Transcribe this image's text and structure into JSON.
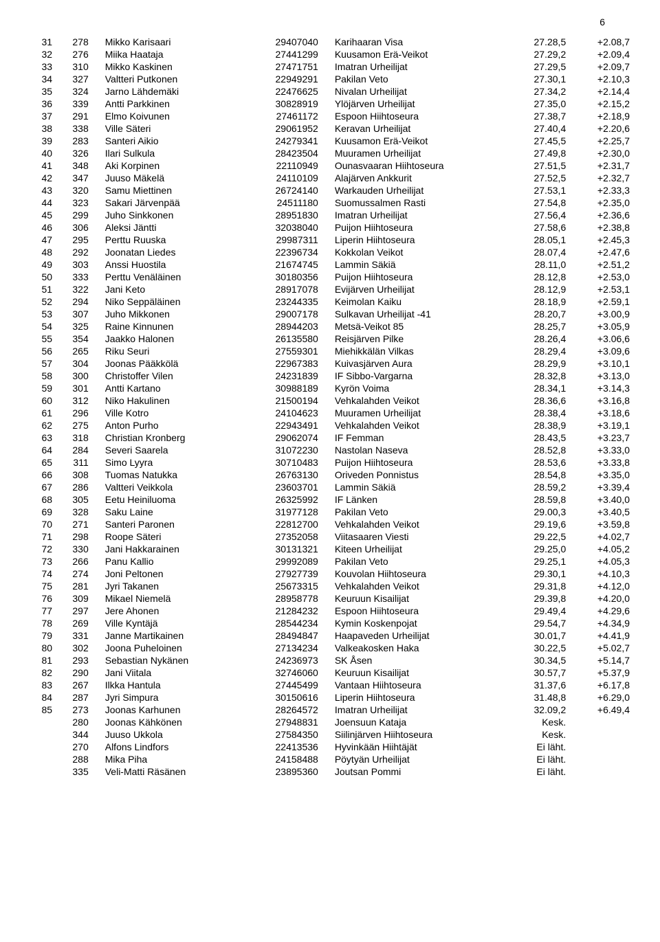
{
  "page_number": "6",
  "styling": {
    "font_family": "Arial",
    "font_size_pt": 11,
    "background_color": "#ffffff",
    "text_color": "#000000"
  },
  "columns": [
    "rank",
    "bib",
    "name",
    "license",
    "club",
    "time",
    "diff"
  ],
  "rows": [
    {
      "rank": "31",
      "bib": "278",
      "name": "Mikko Karisaari",
      "license": "29407040",
      "club": "Karihaaran Visa",
      "time": "27.28,5",
      "diff": "+2.08,7"
    },
    {
      "rank": "32",
      "bib": "276",
      "name": "Miika  Haataja",
      "license": "27441299",
      "club": "Kuusamon Erä-Veikot",
      "time": "27.29,2",
      "diff": "+2.09,4"
    },
    {
      "rank": "33",
      "bib": "310",
      "name": "Mikko  Kaskinen",
      "license": "27471751",
      "club": "Imatran Urheilijat",
      "time": "27.29,5",
      "diff": "+2.09,7"
    },
    {
      "rank": "34",
      "bib": "327",
      "name": "Valtteri Putkonen",
      "license": "22949291",
      "club": "Pakilan Veto",
      "time": "27.30,1",
      "diff": "+2.10,3"
    },
    {
      "rank": "35",
      "bib": "324",
      "name": "Jarno Lähdemäki",
      "license": "22476625",
      "club": "Nivalan Urheilijat",
      "time": "27.34,2",
      "diff": "+2.14,4"
    },
    {
      "rank": "36",
      "bib": "339",
      "name": "Antti Parkkinen",
      "license": "30828919",
      "club": "Ylöjärven Urheilijat",
      "time": "27.35,0",
      "diff": "+2.15,2"
    },
    {
      "rank": "37",
      "bib": "291",
      "name": "Elmo  Koivunen",
      "license": "27461172",
      "club": "Espoon Hiihtoseura",
      "time": "27.38,7",
      "diff": "+2.18,9"
    },
    {
      "rank": "38",
      "bib": "338",
      "name": "Ville Säteri",
      "license": "29061952",
      "club": "Keravan Urheilijat",
      "time": "27.40,4",
      "diff": "+2.20,6"
    },
    {
      "rank": "39",
      "bib": "283",
      "name": "Santeri  Aikio",
      "license": "24279341",
      "club": "Kuusamon Erä-Veikot",
      "time": "27.45,5",
      "diff": "+2.25,7"
    },
    {
      "rank": "40",
      "bib": "326",
      "name": "Ilari Sulkula",
      "license": "28423504",
      "club": "Muuramen Urheilijat",
      "time": "27.49,8",
      "diff": "+2.30,0"
    },
    {
      "rank": "41",
      "bib": "348",
      "name": "Aki Korpinen",
      "license": "22110949",
      "club": "Ounasvaaran Hiihtoseura",
      "time": "27.51,5",
      "diff": "+2.31,7"
    },
    {
      "rank": "42",
      "bib": "347",
      "name": "Juuso Mäkelä",
      "license": "24110109",
      "club": "Alajärven Ankkurit",
      "time": "27.52,5",
      "diff": "+2.32,7"
    },
    {
      "rank": "43",
      "bib": "320",
      "name": "Samu Miettinen",
      "license": "26724140",
      "club": "Warkauden Urheilijat",
      "time": "27.53,1",
      "diff": "+2.33,3"
    },
    {
      "rank": "44",
      "bib": "323",
      "name": "Sakari Järvenpää",
      "license": "24511180",
      "club": "Suomussalmen Rasti",
      "time": "27.54,8",
      "diff": "+2.35,0"
    },
    {
      "rank": "45",
      "bib": "299",
      "name": "Juho  Sinkkonen",
      "license": "28951830",
      "club": "Imatran Urheilijat",
      "time": "27.56,4",
      "diff": "+2.36,6"
    },
    {
      "rank": "46",
      "bib": "306",
      "name": "Aleksi  Jäntti",
      "license": "32038040",
      "club": "Puijon Hiihtoseura",
      "time": "27.58,6",
      "diff": "+2.38,8"
    },
    {
      "rank": "47",
      "bib": "295",
      "name": "Perttu  Ruuska",
      "license": "29987311",
      "club": "Liperin Hiihtoseura",
      "time": "28.05,1",
      "diff": "+2.45,3"
    },
    {
      "rank": "48",
      "bib": "292",
      "name": "Joonatan  Liedes",
      "license": "22396734",
      "club": "Kokkolan Veikot",
      "time": "28.07,4",
      "diff": "+2.47,6"
    },
    {
      "rank": "49",
      "bib": "303",
      "name": "Anssi  Huostila",
      "license": "21674745",
      "club": "Lammin Säkiä",
      "time": "28.11,0",
      "diff": "+2.51,2"
    },
    {
      "rank": "50",
      "bib": "333",
      "name": "Perttu Venäläinen",
      "license": "30180356",
      "club": "Puijon Hiihtoseura",
      "time": "28.12,8",
      "diff": "+2.53,0"
    },
    {
      "rank": "51",
      "bib": "322",
      "name": "Jani Keto",
      "license": "28917078",
      "club": "Evijärven Urheilijat",
      "time": "28.12,9",
      "diff": "+2.53,1"
    },
    {
      "rank": "52",
      "bib": "294",
      "name": "Niko  Seppäläinen",
      "license": "23244335",
      "club": "Keimolan Kaiku",
      "time": "28.18,9",
      "diff": "+2.59,1"
    },
    {
      "rank": "53",
      "bib": "307",
      "name": "Juho  Mikkonen",
      "license": "29007178",
      "club": "Sulkavan Urheilijat -41",
      "time": "28.20,7",
      "diff": "+3.00,9"
    },
    {
      "rank": "54",
      "bib": "325",
      "name": "Raine  Kinnunen",
      "license": "28944203",
      "club": "Metsä-Veikot 85",
      "time": "28.25,7",
      "diff": "+3.05,9"
    },
    {
      "rank": "55",
      "bib": "354",
      "name": "Jaakko Halonen",
      "license": "26135580",
      "club": "Reisjärven Pilke",
      "time": "28.26,4",
      "diff": "+3.06,6"
    },
    {
      "rank": "56",
      "bib": "265",
      "name": "Riku  Seuri",
      "license": "27559301",
      "club": "Miehikkälän Vilkas",
      "time": "28.29,4",
      "diff": "+3.09,6"
    },
    {
      "rank": "57",
      "bib": "304",
      "name": "Joonas  Pääkkölä",
      "license": "22967383",
      "club": "Kuivasjärven Aura",
      "time": "28.29,9",
      "diff": "+3.10,1"
    },
    {
      "rank": "58",
      "bib": "300",
      "name": "Christoffer  Vilen",
      "license": "24231839",
      "club": "IF Sibbo-Vargarna",
      "time": "28.32,8",
      "diff": "+3.13,0"
    },
    {
      "rank": "59",
      "bib": "301",
      "name": "Antti  Kartano",
      "license": "30988189",
      "club": "Kyrön Voima",
      "time": "28.34,1",
      "diff": "+3.14,3"
    },
    {
      "rank": "60",
      "bib": "312",
      "name": "Niko Hakulinen",
      "license": "21500194",
      "club": "Vehkalahden Veikot",
      "time": "28.36,6",
      "diff": "+3.16,8"
    },
    {
      "rank": "61",
      "bib": "296",
      "name": "Ville  Kotro",
      "license": "24104623",
      "club": "Muuramen Urheilijat",
      "time": "28.38,4",
      "diff": "+3.18,6"
    },
    {
      "rank": "62",
      "bib": "275",
      "name": "Anton  Purho",
      "license": "22943491",
      "club": "Vehkalahden Veikot",
      "time": "28.38,9",
      "diff": "+3.19,1"
    },
    {
      "rank": "63",
      "bib": "318",
      "name": "Christian Kronberg",
      "license": "29062074",
      "club": "IF Femman",
      "time": "28.43,5",
      "diff": "+3.23,7"
    },
    {
      "rank": "64",
      "bib": "284",
      "name": "Severi  Saarela",
      "license": "31072230",
      "club": "Nastolan Naseva",
      "time": "28.52,8",
      "diff": "+3.33,0"
    },
    {
      "rank": "65",
      "bib": "311",
      "name": "Simo  Lyyra",
      "license": "30710483",
      "club": "Puijon Hiihtoseura",
      "time": "28.53,6",
      "diff": "+3.33,8"
    },
    {
      "rank": "66",
      "bib": "308",
      "name": "Tuomas  Natukka",
      "license": "26763130",
      "club": "Oriveden Ponnistus",
      "time": "28.54,8",
      "diff": "+3.35,0"
    },
    {
      "rank": "67",
      "bib": "286",
      "name": "Valtteri  Veikkola",
      "license": "23603701",
      "club": "Lammin Säkiä",
      "time": "28.59,2",
      "diff": "+3.39,4"
    },
    {
      "rank": "68",
      "bib": "305",
      "name": "Eetu  Heiniluoma",
      "license": "26325992",
      "club": "IF Länken",
      "time": "28.59,8",
      "diff": "+3.40,0"
    },
    {
      "rank": "69",
      "bib": "328",
      "name": "Saku Laine",
      "license": "31977128",
      "club": "Pakilan Veto",
      "time": "29.00,3",
      "diff": "+3.40,5"
    },
    {
      "rank": "70",
      "bib": "271",
      "name": "Santeri  Paronen",
      "license": "22812700",
      "club": "Vehkalahden Veikot",
      "time": "29.19,6",
      "diff": "+3.59,8"
    },
    {
      "rank": "71",
      "bib": "298",
      "name": "Roope Säteri",
      "license": "27352058",
      "club": "Viitasaaren Viesti",
      "time": "29.22,5",
      "diff": "+4.02,7"
    },
    {
      "rank": "72",
      "bib": "330",
      "name": "Jani  Hakkarainen",
      "license": "30131321",
      "club": "Kiteen Urheilijat",
      "time": "29.25,0",
      "diff": "+4.05,2"
    },
    {
      "rank": "73",
      "bib": "266",
      "name": "Panu  Kallio",
      "license": "29992089",
      "club": "Pakilan Veto",
      "time": "29.25,1",
      "diff": "+4.05,3"
    },
    {
      "rank": "74",
      "bib": "274",
      "name": "Joni  Peltonen",
      "license": "27927739",
      "club": "Kouvolan Hiihtoseura",
      "time": "29.30,1",
      "diff": "+4.10,3"
    },
    {
      "rank": "75",
      "bib": "281",
      "name": "Jyri  Takanen",
      "license": "25673315",
      "club": "Vehkalahden Veikot",
      "time": "29.31,8",
      "diff": "+4.12,0"
    },
    {
      "rank": "76",
      "bib": "309",
      "name": "Mikael  Niemelä",
      "license": "28958778",
      "club": "Keuruun Kisailijat",
      "time": "29.39,8",
      "diff": "+4.20,0"
    },
    {
      "rank": "77",
      "bib": "297",
      "name": "Jere  Ahonen",
      "license": "21284232",
      "club": "Espoon Hiihtoseura",
      "time": "29.49,4",
      "diff": "+4.29,6"
    },
    {
      "rank": "78",
      "bib": "269",
      "name": "Ville  Kyntäjä",
      "license": "28544234",
      "club": "Kymin Koskenpojat",
      "time": "29.54,7",
      "diff": "+4.34,9"
    },
    {
      "rank": "79",
      "bib": "331",
      "name": "Janne Martikainen",
      "license": "28494847",
      "club": "Haapaveden Urheilijat",
      "time": "30.01,7",
      "diff": "+4.41,9"
    },
    {
      "rank": "80",
      "bib": "302",
      "name": "Joona  Puheloinen",
      "license": "27134234",
      "club": "Valkeakosken Haka",
      "time": "30.22,5",
      "diff": "+5.02,7"
    },
    {
      "rank": "81",
      "bib": "293",
      "name": "Sebastian  Nykänen",
      "license": "24236973",
      "club": "SK Åsen",
      "time": "30.34,5",
      "diff": "+5.14,7"
    },
    {
      "rank": "82",
      "bib": "290",
      "name": "Jani  Viitala",
      "license": "32746060",
      "club": "Keuruun Kisailijat",
      "time": "30.57,7",
      "diff": "+5.37,9"
    },
    {
      "rank": "83",
      "bib": "267",
      "name": "Ilkka Hantula",
      "license": "27445499",
      "club": "Vantaan Hiihtoseura",
      "time": "31.37,6",
      "diff": "+6.17,8"
    },
    {
      "rank": "84",
      "bib": "287",
      "name": "Jyri  Simpura",
      "license": "30150616",
      "club": "Liperin Hiihtoseura",
      "time": "31.48,8",
      "diff": "+6.29,0"
    },
    {
      "rank": "85",
      "bib": "273",
      "name": "Joonas  Karhunen",
      "license": "28264572",
      "club": "Imatran Urheilijat",
      "time": "32.09,2",
      "diff": "+6.49,4"
    },
    {
      "rank": "",
      "bib": "280",
      "name": "Joonas  Kähkönen",
      "license": "27948831",
      "club": "Joensuun Kataja",
      "time": "Kesk.",
      "diff": ""
    },
    {
      "rank": "",
      "bib": "344",
      "name": "Juuso  Ukkola",
      "license": "27584350",
      "club": "Siilinjärven Hiihtoseura",
      "time": "Kesk.",
      "diff": ""
    },
    {
      "rank": "",
      "bib": "270",
      "name": "Alfons  Lindfors",
      "license": "22413536",
      "club": "Hyvinkään Hiihtäjät",
      "time": "Ei läht.",
      "diff": ""
    },
    {
      "rank": "",
      "bib": "288",
      "name": "Mika  Piha",
      "license": "24158488",
      "club": "Pöytyän Urheilijat",
      "time": "Ei läht.",
      "diff": ""
    },
    {
      "rank": "",
      "bib": "335",
      "name": "Veli-Matti Räsänen",
      "license": "23895360",
      "club": "Joutsan Pommi",
      "time": "Ei läht.",
      "diff": ""
    }
  ]
}
